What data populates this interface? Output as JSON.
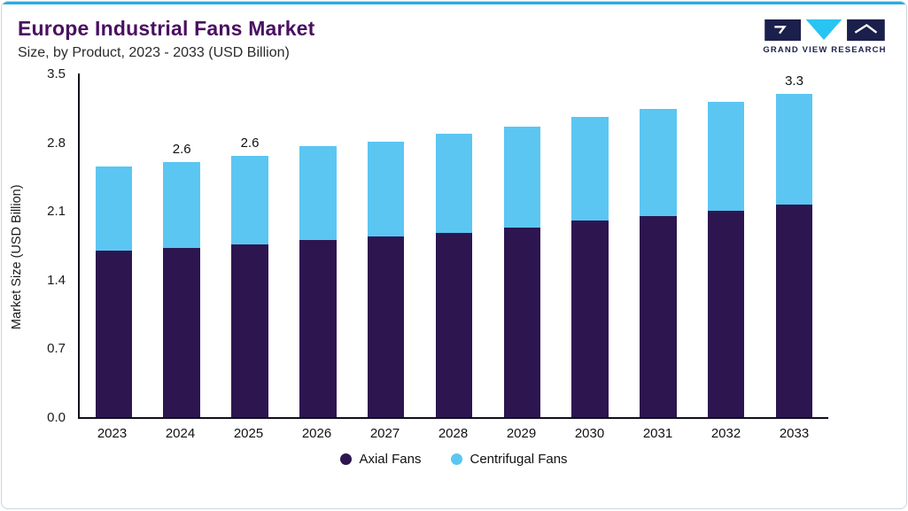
{
  "header": {
    "title": "Europe Industrial Fans Market",
    "subtitle": "Size, by Product, 2023 - 2033 (USD Billion)",
    "logo_text": "GRAND VIEW RESEARCH"
  },
  "colors": {
    "accent_line": "#29abe2",
    "title": "#4a1060",
    "axial": "#2d1650",
    "centrifugal": "#5bc6f2",
    "logo_navy": "#1b1f4b",
    "axis": "#10101e"
  },
  "chart_data": {
    "type": "bar",
    "stacked": true,
    "title": "Europe Industrial Fans Market",
    "subtitle": "Size, by Product, 2023 - 2033 (USD Billion)",
    "categories": [
      "2023",
      "2024",
      "2025",
      "2026",
      "2027",
      "2028",
      "2029",
      "2030",
      "2031",
      "2032",
      "2033"
    ],
    "series": [
      {
        "name": "Axial Fans",
        "color_key": "axial",
        "values": [
          1.7,
          1.72,
          1.76,
          1.8,
          1.84,
          1.88,
          1.93,
          2.0,
          2.05,
          2.1,
          2.17
        ]
      },
      {
        "name": "Centrifugal Fans",
        "color_key": "centrifugal",
        "values": [
          0.85,
          0.88,
          0.9,
          0.96,
          0.97,
          1.01,
          1.03,
          1.06,
          1.09,
          1.11,
          1.13
        ]
      }
    ],
    "totals_labels": {
      "1": "2.6",
      "2": "2.6",
      "10": "3.3"
    },
    "ylabel": "Market Size (USD Billion)",
    "yticks": [
      0.0,
      0.7,
      1.4,
      2.1,
      2.8,
      3.5
    ],
    "ylim": [
      0,
      3.5
    ],
    "grid": false,
    "legend_position": "bottom"
  }
}
